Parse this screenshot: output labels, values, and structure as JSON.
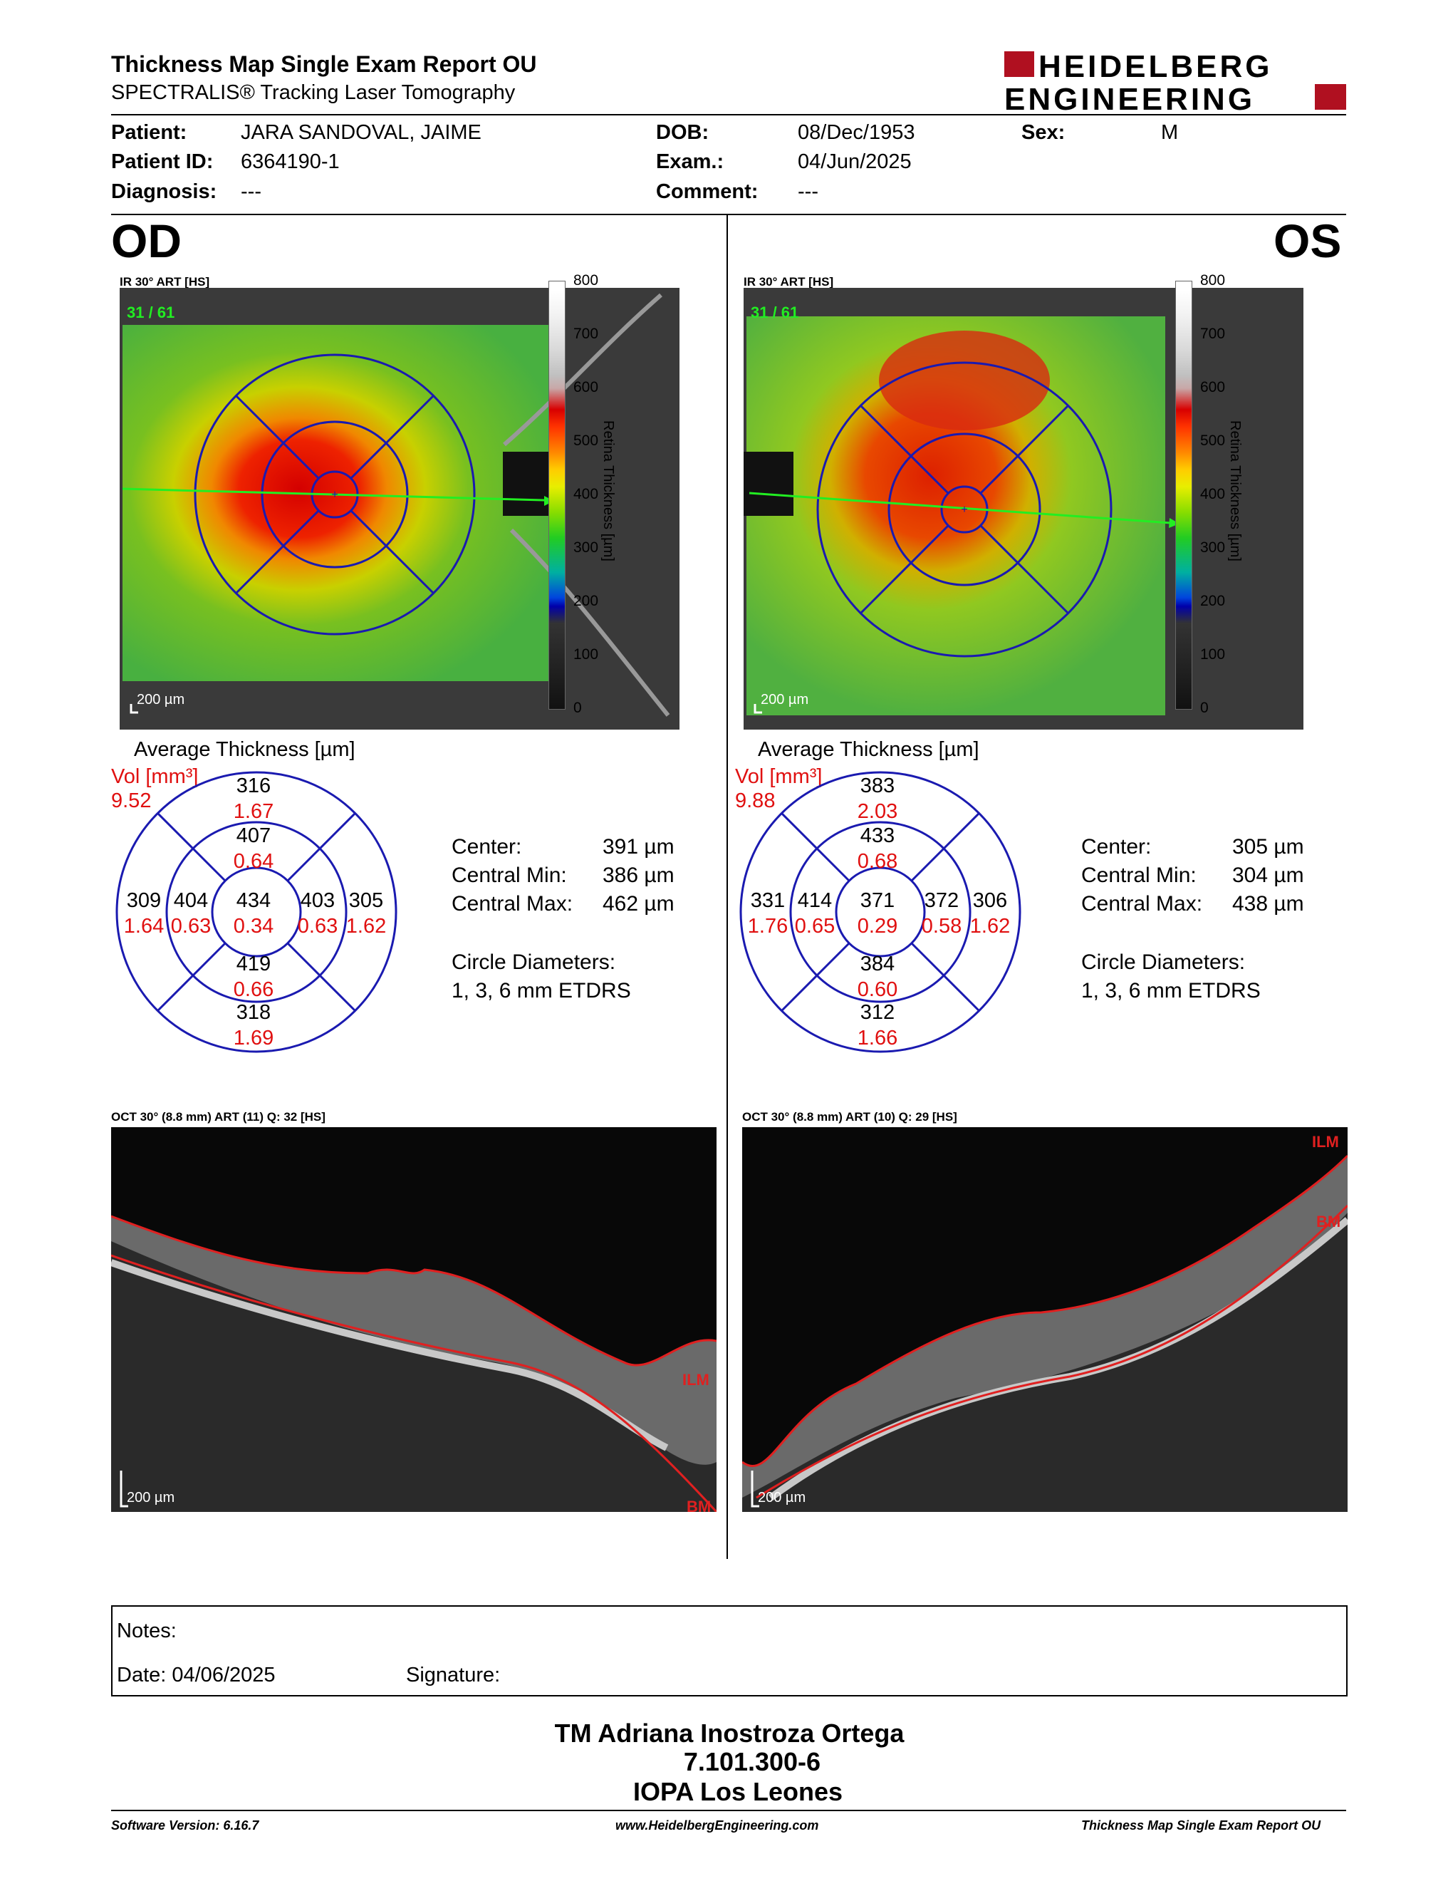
{
  "header": {
    "title": "Thickness Map Single Exam Report OU",
    "subtitle": "SPECTRALIS® Tracking Laser Tomography",
    "logo_line1": "HEIDELBERG",
    "logo_line2": "ENGINEERING"
  },
  "patient": {
    "patient_label": "Patient:",
    "patient_value": "JARA SANDOVAL, JAIME",
    "id_label": "Patient ID:",
    "id_value": "6364190-1",
    "diagnosis_label": "Diagnosis:",
    "diagnosis_value": "---",
    "dob_label": "DOB:",
    "dob_value": "08/Dec/1953",
    "exam_label": "Exam.:",
    "exam_value": "04/Jun/2025",
    "comment_label": "Comment:",
    "comment_value": "---",
    "sex_label": "Sex:",
    "sex_value": "M"
  },
  "colorbar": {
    "ticks": [
      "800",
      "700",
      "600",
      "500",
      "400",
      "300",
      "200",
      "100",
      "0"
    ],
    "title": "Retina Thickness [µm]"
  },
  "od": {
    "eye": "OD",
    "map_label": "IR 30° ART [HS]",
    "frame": "31 / 61",
    "scale": "200 µm",
    "avg_title": "Average Thickness [µm]",
    "vol_label": "Vol [mm³]",
    "vol_value": "9.52",
    "grid": {
      "outer_sup": "316",
      "outer_sup_vol": "1.67",
      "inner_sup": "407",
      "inner_sup_vol": "0.64",
      "outer_left": "309",
      "outer_left_vol": "1.64",
      "inner_left": "404",
      "inner_left_vol": "0.63",
      "center": "434",
      "center_vol": "0.34",
      "inner_right": "403",
      "inner_right_vol": "0.63",
      "outer_right": "305",
      "outer_right_vol": "1.62",
      "inner_inf": "419",
      "inner_inf_vol": "0.66",
      "outer_inf": "318",
      "outer_inf_vol": "1.69"
    },
    "stats": {
      "center_label": "Center:",
      "center_value": "391 µm",
      "min_label": "Central Min:",
      "min_value": "386 µm",
      "max_label": "Central Max:",
      "max_value": "462 µm",
      "diam_label": "Circle Diameters:",
      "diam_value": "1, 3, 6 mm ETDRS"
    },
    "oct_label": "OCT 30° (8.8 mm) ART (11) Q: 32 [HS]",
    "oct_scale": "200 µm",
    "ilm": "ILM",
    "bm": "BM"
  },
  "os": {
    "eye": "OS",
    "map_label": "IR 30° ART [HS]",
    "frame": "31 / 61",
    "scale": "200 µm",
    "avg_title": "Average Thickness [µm]",
    "vol_label": "Vol [mm³]",
    "vol_value": "9.88",
    "grid": {
      "outer_sup": "383",
      "outer_sup_vol": "2.03",
      "inner_sup": "433",
      "inner_sup_vol": "0.68",
      "outer_left": "331",
      "outer_left_vol": "1.76",
      "inner_left": "414",
      "inner_left_vol": "0.65",
      "center": "371",
      "center_vol": "0.29",
      "inner_right": "372",
      "inner_right_vol": "0.58",
      "outer_right": "306",
      "outer_right_vol": "1.62",
      "inner_inf": "384",
      "inner_inf_vol": "0.60",
      "outer_inf": "312",
      "outer_inf_vol": "1.66"
    },
    "stats": {
      "center_label": "Center:",
      "center_value": "305 µm",
      "min_label": "Central Min:",
      "min_value": "304 µm",
      "max_label": "Central Max:",
      "max_value": "438 µm",
      "diam_label": "Circle Diameters:",
      "diam_value": "1, 3, 6 mm ETDRS"
    },
    "oct_label": "OCT 30° (8.8 mm) ART (10) Q: 29 [HS]",
    "oct_scale": "200 µm",
    "ilm": "ILM",
    "bm": "BM"
  },
  "notes": {
    "notes_label": "Notes:",
    "date_label": "Date: 04/06/2025",
    "signature_label": "Signature:"
  },
  "signer": {
    "name": "TM Adriana Inostroza Ortega",
    "id": "7.101.300-6",
    "institution": "IOPA Los Leones"
  },
  "footer": {
    "software": "Software Version: 6.16.7",
    "website": "www.HeidelbergEngineering.com",
    "report": "Thickness Map Single Exam Report OU"
  },
  "colors": {
    "grid_blue": "#1a1ab0",
    "volume_red": "#e01010",
    "brand_red": "#b01020",
    "scan_green": "#22ee22",
    "layer_red": "#e02020"
  }
}
